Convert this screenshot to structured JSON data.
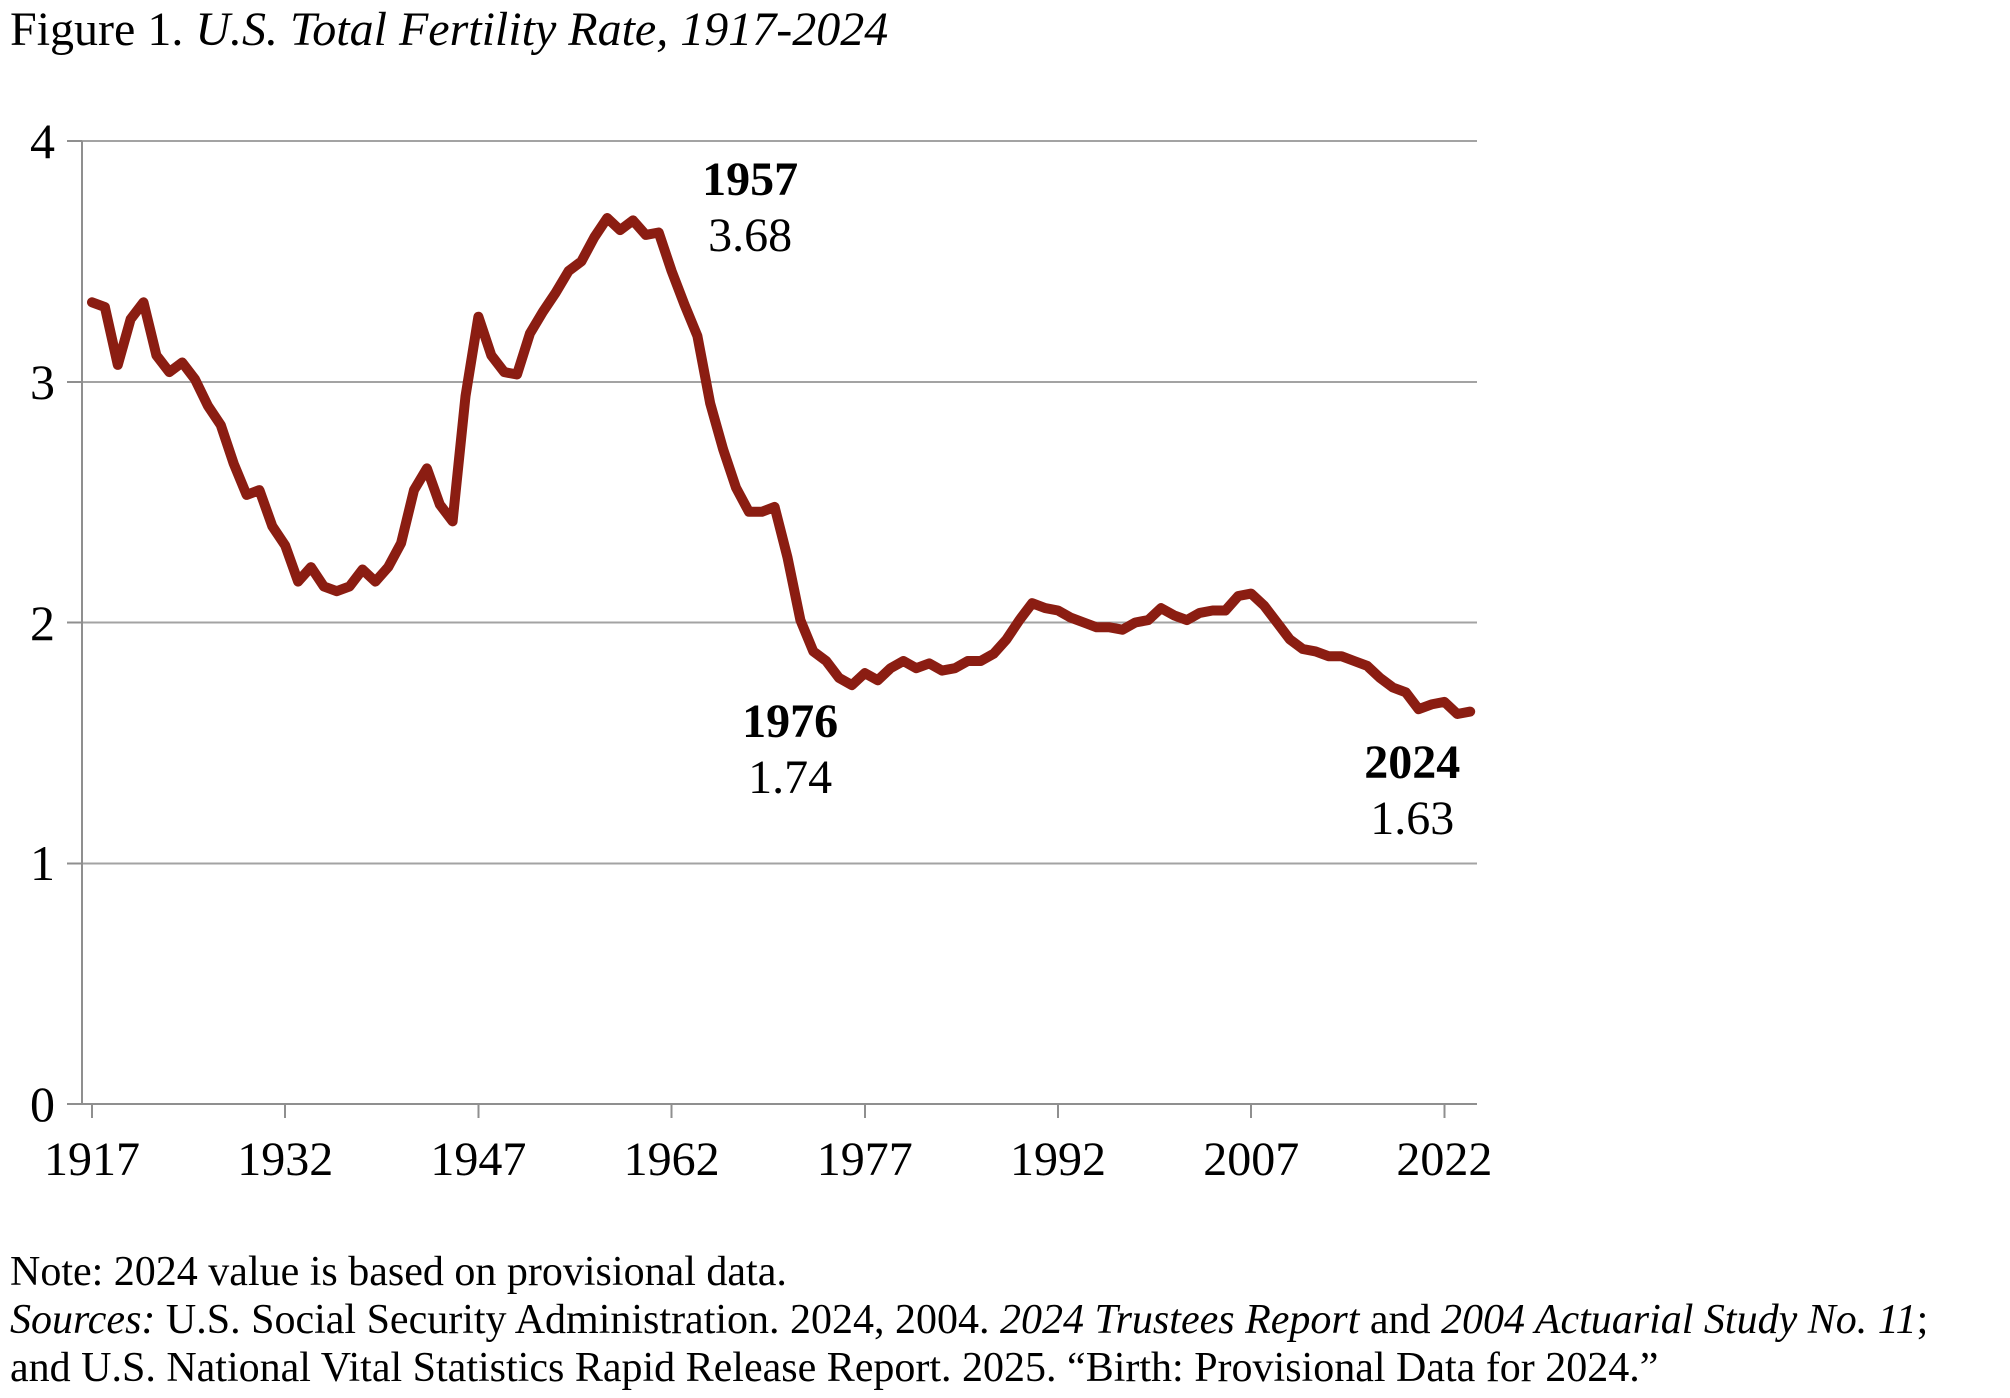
{
  "figure_title": {
    "segments": [
      {
        "text": "Figure 1. ",
        "italic": false
      },
      {
        "text": "U.S. Total Fertility Rate, 1917-2024",
        "italic": true
      }
    ]
  },
  "chart_data": {
    "type": "line",
    "title": "U.S. Total Fertility Rate, 1917-2024",
    "xlabel": "",
    "ylabel": "",
    "ylim": [
      0,
      4
    ],
    "yticks": [
      0,
      1,
      2,
      3,
      4
    ],
    "xticks": [
      1917,
      1932,
      1947,
      1962,
      1977,
      1992,
      2007,
      2022
    ],
    "grid": "horizontal",
    "legend": "none",
    "line_color": "#8B1D12",
    "gridline_color": "#A3A3A3",
    "axis_color": "#8F8F8F",
    "series_name": "Total fertility rate",
    "years": [
      1917,
      1918,
      1919,
      1920,
      1921,
      1922,
      1923,
      1924,
      1925,
      1926,
      1927,
      1928,
      1929,
      1930,
      1931,
      1932,
      1933,
      1934,
      1935,
      1936,
      1937,
      1938,
      1939,
      1940,
      1941,
      1942,
      1943,
      1944,
      1945,
      1946,
      1947,
      1948,
      1949,
      1950,
      1951,
      1952,
      1953,
      1954,
      1955,
      1956,
      1957,
      1958,
      1959,
      1960,
      1961,
      1962,
      1963,
      1964,
      1965,
      1966,
      1967,
      1968,
      1969,
      1970,
      1971,
      1972,
      1973,
      1974,
      1975,
      1976,
      1977,
      1978,
      1979,
      1980,
      1981,
      1982,
      1983,
      1984,
      1985,
      1986,
      1987,
      1988,
      1989,
      1990,
      1991,
      1992,
      1993,
      1994,
      1995,
      1996,
      1997,
      1998,
      1999,
      2000,
      2001,
      2002,
      2003,
      2004,
      2005,
      2006,
      2007,
      2008,
      2009,
      2010,
      2011,
      2012,
      2013,
      2014,
      2015,
      2016,
      2017,
      2018,
      2019,
      2020,
      2021,
      2022,
      2023,
      2024
    ],
    "values": [
      3.33,
      3.31,
      3.07,
      3.26,
      3.33,
      3.11,
      3.04,
      3.08,
      3.01,
      2.9,
      2.82,
      2.66,
      2.53,
      2.55,
      2.4,
      2.32,
      2.17,
      2.23,
      2.15,
      2.13,
      2.15,
      2.22,
      2.17,
      2.23,
      2.33,
      2.55,
      2.64,
      2.49,
      2.42,
      2.94,
      3.27,
      3.11,
      3.04,
      3.03,
      3.2,
      3.29,
      3.37,
      3.46,
      3.5,
      3.6,
      3.68,
      3.63,
      3.67,
      3.61,
      3.62,
      3.46,
      3.32,
      3.19,
      2.91,
      2.72,
      2.56,
      2.46,
      2.46,
      2.48,
      2.27,
      2.01,
      1.88,
      1.84,
      1.77,
      1.74,
      1.79,
      1.76,
      1.81,
      1.84,
      1.81,
      1.83,
      1.8,
      1.81,
      1.84,
      1.84,
      1.87,
      1.93,
      2.01,
      2.08,
      2.06,
      2.05,
      2.02,
      2.0,
      1.98,
      1.98,
      1.97,
      2.0,
      2.01,
      2.06,
      2.03,
      2.01,
      2.04,
      2.05,
      2.05,
      2.11,
      2.12,
      2.07,
      2.0,
      1.93,
      1.89,
      1.88,
      1.86,
      1.86,
      1.84,
      1.82,
      1.77,
      1.73,
      1.71,
      1.64,
      1.66,
      1.67,
      1.62,
      1.63
    ],
    "annotations": [
      {
        "year_label": "1957",
        "value_label": "3.68",
        "anchor_year": 1968.1,
        "anchor_value": 3.72
      },
      {
        "year_label": "1976",
        "value_label": "1.74",
        "anchor_year": 1971.2,
        "anchor_value": 1.47
      },
      {
        "year_label": "2024",
        "value_label": "1.63",
        "anchor_year": 2019.5,
        "anchor_value": 1.3
      }
    ]
  },
  "notes": {
    "lines": [
      {
        "name": "note-line",
        "segments": [
          {
            "text": "Note: 2024 value is based on provisional data.",
            "italic": false
          }
        ]
      },
      {
        "name": "sources-line-1",
        "segments": [
          {
            "text": "Sources:",
            "italic": true
          },
          {
            "text": " U.S. Social Security Administration. 2024, 2004. ",
            "italic": false
          },
          {
            "text": "2024 Trustees Report",
            "italic": true
          },
          {
            "text": " and ",
            "italic": false
          },
          {
            "text": "2004 Actuarial Study No. 11",
            "italic": true
          },
          {
            "text": ";",
            "italic": false
          }
        ]
      },
      {
        "name": "sources-line-2",
        "segments": [
          {
            "text": "and U.S. National Vital Statistics Rapid Release Report. 2025. “Birth: Provisional Data for 2024.”",
            "italic": false
          }
        ]
      }
    ]
  }
}
